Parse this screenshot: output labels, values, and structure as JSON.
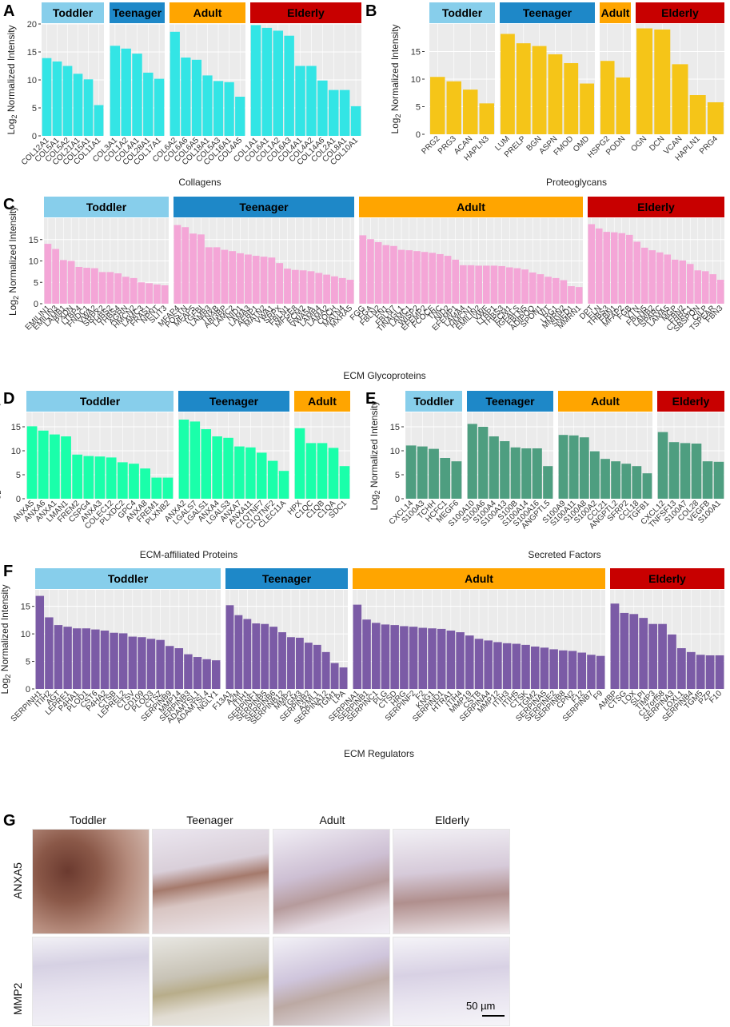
{
  "colors": {
    "Toddler": "#87CEEB",
    "Teenager": "#1E88C8",
    "Adult": "#FFA500",
    "Elderly": "#C80000",
    "panel_bg": "#EBEBEB",
    "grid": "#FFFFFF"
  },
  "ylabel_base": "Log",
  "ylabel_sub": "2",
  "ylabel_rest": " Normalized Intensity",
  "chart_data": [
    {
      "id": "A",
      "type": "bar",
      "xlabel": "Collagens",
      "color": "#33E5E5",
      "ylim": [
        0,
        20
      ],
      "yticks": [
        0,
        5,
        10,
        15,
        20
      ],
      "groups": [
        {
          "name": "Toddler",
          "categories": [
            "COL12A1",
            "COL5A1",
            "COL5A2",
            "COL21A1",
            "COL15A1",
            "COL11A1"
          ],
          "values": [
            13.9,
            13.3,
            12.5,
            11.1,
            10.1,
            5.5
          ]
        },
        {
          "name": "Teenager",
          "categories": [
            "COL3A1",
            "COL1A2",
            "COL4A1",
            "COL28A1",
            "COL17A1"
          ],
          "values": [
            16.1,
            15.6,
            14.7,
            11.3,
            10.2
          ]
        },
        {
          "name": "Adult",
          "categories": [
            "COL6A2",
            "COL6A6",
            "COL6A5",
            "COL18A1",
            "COL5A3",
            "COL16A1",
            "COL4A5"
          ],
          "values": [
            18.6,
            14.0,
            13.6,
            10.8,
            9.8,
            9.6,
            7.0
          ]
        },
        {
          "name": "Elderly",
          "categories": [
            "COL1A1",
            "COL6A1",
            "COL1A2",
            "COL6A3",
            "COL4A1",
            "COL4A2",
            "COL14A6",
            "COL2A1",
            "COL8A1",
            "COL10A1"
          ],
          "values": [
            19.8,
            19.3,
            18.8,
            17.9,
            12.5,
            12.5,
            9.9,
            8.2,
            8.2,
            5.3
          ]
        }
      ]
    },
    {
      "id": "B",
      "type": "bar",
      "xlabel": "Proteoglycans",
      "color": "#F5C518",
      "ylim": [
        0,
        20
      ],
      "yticks": [
        0,
        5,
        10,
        15
      ],
      "groups": [
        {
          "name": "Toddler",
          "categories": [
            "PRG2",
            "PRG3",
            "ACAN",
            "HAPLN3"
          ],
          "values": [
            10.4,
            9.6,
            8.1,
            5.6
          ]
        },
        {
          "name": "Teenager",
          "categories": [
            "LUM",
            "PRELP",
            "BGN",
            "ASPN",
            "FMOD",
            "OMD"
          ],
          "values": [
            18.2,
            16.5,
            16.0,
            14.5,
            12.9,
            9.2
          ]
        },
        {
          "name": "Adult",
          "categories": [
            "HSPG2",
            "PODN"
          ],
          "values": [
            13.3,
            10.3
          ]
        },
        {
          "name": "Elderly",
          "categories": [
            "OGN",
            "DCN",
            "VCAN",
            "HAPLN1",
            "PRG4"
          ],
          "values": [
            19.2,
            19.0,
            12.7,
            7.1,
            5.8
          ]
        }
      ]
    },
    {
      "id": "C",
      "type": "bar",
      "xlabel": "ECM Glycoproteins",
      "color": "#F4A6D7",
      "ylim": [
        0,
        20
      ],
      "yticks": [
        0,
        5,
        10,
        15
      ],
      "groups": [
        {
          "name": "Toddler",
          "categories": [
            "EMILIN1",
            "EMILIN3",
            "LAMB1",
            "PXDN",
            "LTBP4",
            "FNDC1",
            "VWA2",
            "SRPX2",
            "THBS2",
            "THBS4",
            "AGRN",
            "HMCN2",
            "LAMC3",
            "FRAS1",
            "NPNT",
            "SLIT3"
          ],
          "values": [
            14.0,
            12.8,
            10.2,
            10.0,
            8.6,
            8.4,
            8.3,
            7.4,
            7.4,
            7.1,
            6.3,
            6.0,
            5.0,
            4.8,
            4.5,
            4.3
          ]
        },
        {
          "name": "Teenager",
          "categories": [
            "MFAP4",
            "POSTN",
            "MFAP5",
            "TGFBI",
            "LAMB3",
            "TNXB",
            "ABI3BP",
            "LAMC2",
            "NID1",
            "LAMA3",
            "AEBP1",
            "MATN2",
            "VWA1",
            "SRPX",
            "FBLN1",
            "MFGE8",
            "ECM2",
            "VWA5A",
            "LAMB4",
            "LAMA2",
            "COCH",
            "MATN4",
            "MXRA5"
          ],
          "values": [
            18.4,
            17.9,
            16.4,
            16.2,
            13.2,
            13.2,
            12.6,
            12.3,
            11.8,
            11.5,
            11.2,
            11.0,
            10.8,
            9.5,
            8.2,
            7.9,
            7.8,
            7.6,
            7.2,
            6.8,
            6.4,
            6.0,
            5.6
          ]
        },
        {
          "name": "Adult",
          "categories": [
            "FGG",
            "FGA",
            "FBLN2",
            "FN1",
            "FBLN7",
            "TINAGL1",
            "LAMC1",
            "WISP2",
            "EFEMP2",
            "FCOCE",
            "TNC",
            "NID2",
            "EFEMP1",
            "LAMA4",
            "HMCN1",
            "EMILIN2",
            "VWF",
            "LTBP1",
            "THBS3",
            "ECM1",
            "IGFALS",
            "FBLN5",
            "ADIPOQ",
            "SPON1",
            "VIT",
            "LRG1",
            "MMRN2",
            "SNED1",
            "MMRN1"
          ],
          "values": [
            16.0,
            15.1,
            14.4,
            13.7,
            13.5,
            12.6,
            12.5,
            12.3,
            12.1,
            11.9,
            11.6,
            11.2,
            10.3,
            9.0,
            9.0,
            8.9,
            8.9,
            8.9,
            8.8,
            8.5,
            8.3,
            8.0,
            7.3,
            6.9,
            6.3,
            6.0,
            5.5,
            4.1,
            3.9
          ]
        },
        {
          "name": "Elderly",
          "categories": [
            "DPT",
            "ELN",
            "THBS3",
            "FBN1",
            "MFAP2",
            "FGB",
            "VTN",
            "FBLN5",
            "LAMB2",
            "SPARC",
            "LAMA5",
            "MGP",
            "FBN2",
            "CTHRC1",
            "SBSPON",
            "CILP",
            "TSPEAR",
            "FBN3"
          ],
          "values": [
            18.6,
            17.6,
            16.8,
            16.7,
            16.5,
            16.1,
            14.5,
            13.1,
            12.5,
            12.0,
            11.5,
            10.3,
            10.1,
            9.3,
            7.8,
            7.6,
            6.9,
            5.6
          ]
        }
      ]
    },
    {
      "id": "D",
      "type": "bar",
      "xlabel": "ECM-affiliated Proteins",
      "color": "#1AFFAA",
      "ylim": [
        0,
        18
      ],
      "yticks": [
        0,
        5,
        10,
        15
      ],
      "groups": [
        {
          "name": "Toddler",
          "categories": [
            "ANXA5",
            "ANXA6",
            "ANXA1",
            "LMAN1",
            "FREM2",
            "CSPG4",
            "ANXA3",
            "COLEC12",
            "PLXDC2",
            "GPC4",
            "ANXA8",
            "FREM1",
            "PLXNB2"
          ],
          "values": [
            15.1,
            14.2,
            13.4,
            13.0,
            9.2,
            8.9,
            8.8,
            8.6,
            7.6,
            7.3,
            6.3,
            4.4,
            4.4
          ]
        },
        {
          "name": "Teenager",
          "categories": [
            "ANXA2",
            "LGALS7",
            "LGALS1",
            "ANXA4",
            "LGALS3",
            "ANXA7",
            "ANXA11",
            "C1QTNF7",
            "C1QTNF2",
            "CLEC11A"
          ],
          "values": [
            16.5,
            16.1,
            14.5,
            13.0,
            12.7,
            10.9,
            10.7,
            9.6,
            7.9,
            5.8
          ]
        },
        {
          "name": "Adult",
          "categories": [
            "HPX",
            "C1QC",
            "C1QB",
            "C1QA",
            "SDC1"
          ],
          "values": [
            14.7,
            11.6,
            11.6,
            10.6,
            6.8
          ]
        }
      ]
    },
    {
      "id": "E",
      "type": "bar",
      "xlabel": "Secreted Factors",
      "color": "#4E9E80",
      "ylim": [
        0,
        18
      ],
      "yticks": [
        0,
        5,
        10,
        15
      ],
      "groups": [
        {
          "name": "Toddler",
          "categories": [
            "CXCL14",
            "S100A3",
            "TCHH",
            "HCFC1",
            "MEGF6"
          ],
          "values": [
            11.1,
            10.9,
            10.4,
            8.5,
            7.8
          ]
        },
        {
          "name": "Teenager",
          "categories": [
            "S100A10",
            "S100A6",
            "S100A4",
            "S100A13",
            "S100B",
            "S100A14",
            "S100A16",
            "ANGPTL5"
          ],
          "values": [
            15.6,
            15.0,
            13.0,
            12.0,
            10.7,
            10.5,
            10.5,
            6.8
          ]
        },
        {
          "name": "Adult",
          "categories": [
            "S100A9",
            "S100A11",
            "S100A8",
            "S100A2",
            "CCL21",
            "ANGPTL2",
            "SFRP2",
            "CCL18",
            "TGFB1"
          ],
          "values": [
            13.3,
            13.2,
            12.8,
            9.9,
            8.3,
            7.8,
            7.3,
            6.8,
            5.3
          ]
        },
        {
          "name": "Elderly",
          "categories": [
            "CXCL12",
            "TNFSF13",
            "S100A7",
            "COL28",
            "VEGFB",
            "S100A1"
          ],
          "values": [
            13.9,
            11.8,
            11.6,
            11.5,
            7.8,
            7.7
          ]
        }
      ]
    },
    {
      "id": "F",
      "type": "bar",
      "xlabel": "ECM Regulators",
      "color": "#7B5BA6",
      "ylim": [
        0,
        18
      ],
      "yticks": [
        0,
        5,
        10,
        15
      ],
      "groups": [
        {
          "name": "Toddler",
          "categories": [
            "SERPINH1",
            "ITIH2",
            "AGT",
            "LEPRE1",
            "P4HA1",
            "PLOD1",
            "CST6",
            "P4HA2",
            "CTSB",
            "LEPREL2",
            "CTSV",
            "CD109",
            "PLOD3",
            "CTSZ",
            "SERPINB9",
            "MMP14",
            "SERPINB3",
            "ADAMTSL1",
            "ADAMTSL4",
            "NGLY1"
          ],
          "values": [
            16.9,
            13.0,
            11.6,
            11.3,
            11.0,
            11.0,
            10.8,
            10.6,
            10.2,
            10.1,
            9.5,
            9.4,
            9.1,
            8.9,
            7.8,
            7.4,
            6.3,
            5.8,
            5.4,
            5.2
          ]
        },
        {
          "name": "Teenager",
          "categories": [
            "F13A1",
            "A2M",
            "ITIH1",
            "SERPINF1",
            "SERPINB5",
            "SERPINB6",
            "SERPINB12",
            "MMP2",
            "TGM3",
            "SERPINB2",
            "A2ML1",
            "SERPINA12",
            "TGM1",
            "LPA"
          ],
          "values": [
            15.2,
            13.4,
            12.7,
            11.9,
            11.8,
            11.3,
            10.3,
            9.4,
            9.3,
            8.4,
            8.0,
            6.7,
            4.7,
            3.9
          ]
        },
        {
          "name": "Adult",
          "categories": [
            "SERPINA1",
            "SERPINB1",
            "SERPINC1",
            "PLG",
            "CTSD",
            "HRG",
            "SERPINF2",
            "F2",
            "KNG1",
            "SERPIND1",
            "HTRA1",
            "ITIH4",
            "MMP19",
            "CSTB",
            "SERPINA4",
            "MMP12",
            "ITIH3",
            "ITIH5",
            "CTSK",
            "TGM2",
            "SERPINA5",
            "SERPINE2",
            "SERPINB8",
            "CPN2",
            "F12",
            "SERPINB7",
            "F9"
          ],
          "values": [
            15.3,
            12.6,
            12.0,
            11.7,
            11.6,
            11.4,
            11.3,
            11.1,
            11.0,
            10.9,
            10.6,
            10.3,
            9.7,
            9.1,
            8.8,
            8.5,
            8.3,
            8.2,
            8.0,
            7.7,
            7.5,
            7.2,
            7.0,
            6.9,
            6.6,
            6.2,
            6.0
          ]
        },
        {
          "name": "Elderly",
          "categories": [
            "AMBP",
            "CTSG",
            "LOX",
            "SLPI",
            "TIMP3",
            "C17orf58",
            "SERPINA3",
            "LOXL1",
            "SERPINB4",
            "TGM5",
            "PZP",
            "F10"
          ],
          "values": [
            15.5,
            13.8,
            13.6,
            12.9,
            11.8,
            11.8,
            9.9,
            7.4,
            6.7,
            6.2,
            6.1,
            6.1
          ]
        }
      ]
    }
  ],
  "panel_G": {
    "label": "G",
    "columns": [
      "Toddler",
      "Teenager",
      "Adult",
      "Elderly"
    ],
    "rows": [
      "ANXA5",
      "MMP2"
    ],
    "scale_bar": "50 µm"
  }
}
